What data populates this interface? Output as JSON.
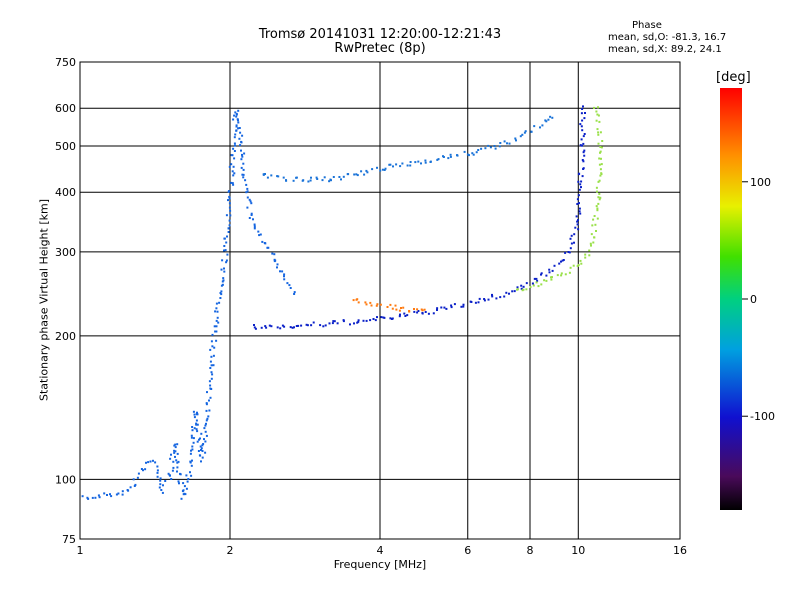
{
  "header": {
    "title_line1": "Tromsø 20141031 12:20:00-12:21:43",
    "title_line2": "RwPretec (8p)",
    "stats_heading": "Phase",
    "stats_o": "mean, sd,O: -81.3, 16.7",
    "stats_x": "mean, sd,X: 89.2, 24.1"
  },
  "colorbar": {
    "unit": "[deg]",
    "ticks": [
      "100",
      "0",
      "-100"
    ],
    "tick_values": [
      100,
      0,
      -100
    ],
    "range": [
      -180,
      180
    ],
    "colormap": "rainbow (black-purple-blue-cyan-green-yellow-orange-red)"
  },
  "chart_data": {
    "type": "scatter",
    "title": "Tromsø 20141031 12:20:00-12:21:43",
    "subtitle": "RwPretec (8p)",
    "xlabel": "Frequency [MHz]",
    "ylabel": "Stationary phase Virtual Height [km]",
    "xscale": "log",
    "yscale": "log",
    "xlim": [
      1,
      16
    ],
    "ylim": [
      75,
      750
    ],
    "xticks": [
      1,
      2,
      4,
      6,
      8,
      10,
      16
    ],
    "xtick_labels": [
      "1",
      "2",
      "4",
      "6",
      "8",
      "10",
      "16"
    ],
    "yticks": [
      75,
      100,
      200,
      300,
      400,
      500,
      600,
      750
    ],
    "ytick_labels": [
      "75",
      "100",
      "200",
      "300",
      "400",
      "500",
      "600",
      "750"
    ],
    "grid": true,
    "colorbar_variable": "Phase [deg]",
    "series": [
      {
        "label_color_hex": "#1565e0",
        "points": [
          [
            1.0,
            92
          ],
          [
            1.05,
            92
          ],
          [
            1.25,
            95
          ],
          [
            1.35,
            108
          ],
          [
            1.4,
            110
          ],
          [
            1.45,
            95
          ],
          [
            1.5,
            100
          ],
          [
            1.55,
            120
          ],
          [
            1.6,
            92
          ],
          [
            1.65,
            105
          ],
          [
            1.7,
            140
          ],
          [
            1.75,
            110
          ],
          [
            1.8,
            150
          ],
          [
            1.85,
            200
          ],
          [
            1.9,
            250
          ],
          [
            1.95,
            300
          ],
          [
            2.0,
            400
          ],
          [
            2.02,
            500
          ],
          [
            2.05,
            600
          ],
          [
            2.1,
            500
          ],
          [
            2.15,
            400
          ],
          [
            2.2,
            350
          ],
          [
            2.3,
            320
          ],
          [
            2.4,
            300
          ],
          [
            2.5,
            280
          ],
          [
            2.6,
            260
          ],
          [
            2.7,
            245
          ]
        ]
      },
      {
        "label_color_hex": "#1a73d8",
        "points": [
          [
            2.3,
            440
          ],
          [
            2.5,
            430
          ],
          [
            2.8,
            425
          ],
          [
            3.2,
            430
          ],
          [
            3.6,
            438
          ],
          [
            4.0,
            450
          ],
          [
            4.5,
            460
          ],
          [
            5.0,
            470
          ],
          [
            5.5,
            478
          ],
          [
            6.0,
            485
          ],
          [
            6.5,
            495
          ],
          [
            7.0,
            505
          ],
          [
            7.5,
            520
          ],
          [
            8.0,
            540
          ],
          [
            8.5,
            560
          ],
          [
            9.0,
            580
          ]
        ]
      },
      {
        "label_color_hex": "#0a20c8",
        "points": [
          [
            2.2,
            210
          ],
          [
            2.5,
            210
          ],
          [
            3.0,
            212
          ],
          [
            3.5,
            215
          ],
          [
            4.0,
            218
          ],
          [
            4.5,
            222
          ],
          [
            5.0,
            226
          ],
          [
            5.5,
            230
          ],
          [
            6.0,
            235
          ],
          [
            6.5,
            240
          ],
          [
            7.0,
            245
          ],
          [
            7.5,
            252
          ],
          [
            8.0,
            260
          ],
          [
            8.5,
            270
          ],
          [
            9.0,
            280
          ],
          [
            9.5,
            300
          ],
          [
            9.8,
            330
          ],
          [
            10.0,
            380
          ],
          [
            10.1,
            450
          ],
          [
            10.15,
            550
          ],
          [
            10.2,
            620
          ]
        ]
      },
      {
        "label_color_hex": "#9ae04a",
        "points": [
          [
            7.5,
            250
          ],
          [
            8.0,
            255
          ],
          [
            8.5,
            260
          ],
          [
            9.0,
            268
          ],
          [
            9.5,
            275
          ],
          [
            10.0,
            285
          ],
          [
            10.4,
            300
          ],
          [
            10.7,
            330
          ],
          [
            10.9,
            380
          ],
          [
            11.0,
            450
          ],
          [
            11.0,
            550
          ],
          [
            10.8,
            620
          ]
        ]
      },
      {
        "label_color_hex": "#ff7a10",
        "points": [
          [
            3.5,
            240
          ],
          [
            3.8,
            235
          ],
          [
            4.2,
            230
          ],
          [
            4.6,
            228
          ],
          [
            5.0,
            226
          ]
        ]
      }
    ]
  }
}
